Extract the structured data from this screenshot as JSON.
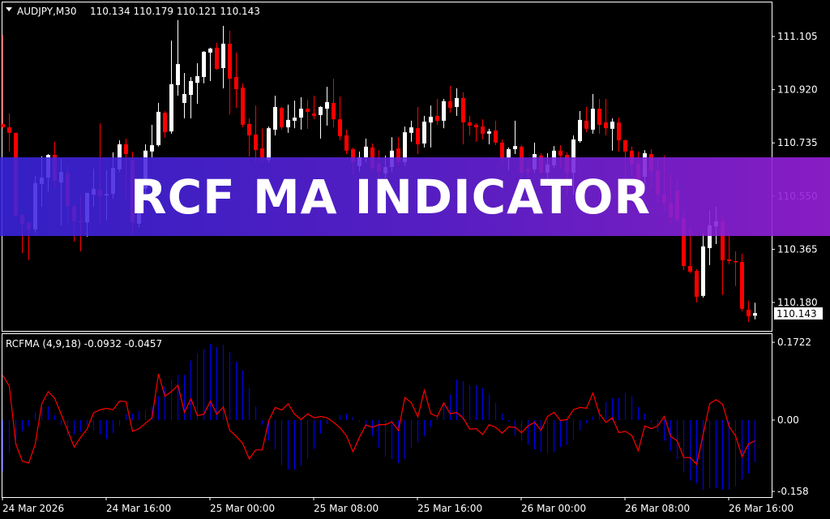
{
  "header": {
    "symbol": "AUDJPY,M30",
    "ohlc": "110.134 110.179 110.121 110.143"
  },
  "indicator_header": "RCFMA (4,9,18) -0.0932 -0.0457",
  "banner": {
    "title": "RCF MA INDICATOR"
  },
  "colors": {
    "background": "#000000",
    "bull": "#ffffff",
    "bear": "#ff0000",
    "histogram": "#0000ff",
    "signal_line": "#ff0000",
    "grid_frame": "#ffffff"
  },
  "chart_data": [
    {
      "type": "candlestick",
      "symbol": "AUDJPY",
      "timeframe": "M30",
      "ylim": [
        110.143,
        111.11
      ],
      "yticks": [
        "111.105",
        "110.920",
        "110.735",
        "110.550",
        "110.365",
        "110.180"
      ],
      "last_price": "110.143",
      "xticks": [
        "24 Mar 2026",
        "24 Mar 16:00",
        "25 Mar 00:00",
        "25 Mar 08:00",
        "25 Mar 16:00",
        "26 Mar 00:00",
        "26 Mar 08:00",
        "26 Mar 16:00"
      ],
      "candles_ohlc": [
        [
          110.801,
          111.111,
          110.786,
          110.789
        ],
        [
          110.789,
          110.837,
          110.705,
          110.77
        ],
        [
          110.77,
          110.77,
          110.476,
          110.482
        ],
        [
          110.485,
          110.485,
          110.352,
          110.454
        ],
        [
          110.457,
          110.46,
          110.327,
          110.434
        ],
        [
          110.434,
          110.62,
          110.423,
          110.595
        ],
        [
          110.592,
          110.688,
          110.513,
          110.614
        ],
        [
          110.614,
          110.696,
          110.566,
          110.693
        ],
        [
          110.693,
          110.739,
          110.578,
          110.603
        ],
        [
          110.597,
          110.679,
          110.448,
          110.634
        ],
        [
          110.631,
          110.654,
          110.448,
          110.516
        ],
        [
          110.513,
          110.524,
          110.392,
          110.462
        ],
        [
          110.465,
          110.555,
          110.358,
          110.459
        ],
        [
          110.459,
          110.561,
          110.409,
          110.561
        ],
        [
          110.555,
          110.645,
          110.513,
          110.575
        ],
        [
          110.572,
          110.803,
          110.457,
          110.55
        ],
        [
          110.552,
          110.64,
          110.465,
          110.558
        ],
        [
          110.558,
          110.702,
          110.541,
          110.648
        ],
        [
          110.643,
          110.744,
          110.634,
          110.73
        ],
        [
          110.73,
          110.75,
          110.541,
          110.696
        ],
        [
          110.674,
          110.705,
          110.417,
          110.459
        ],
        [
          110.454,
          110.513,
          110.442,
          110.49
        ],
        [
          110.575,
          110.73,
          110.555,
          110.708
        ],
        [
          110.705,
          110.798,
          110.682,
          110.727
        ],
        [
          110.727,
          110.874,
          110.722,
          110.843
        ],
        [
          110.84,
          110.846,
          110.753,
          110.772
        ],
        [
          110.775,
          111.091,
          110.767,
          110.939
        ],
        [
          110.936,
          111.162,
          110.899,
          111.009
        ],
        [
          110.874,
          110.978,
          110.82,
          110.905
        ],
        [
          110.902,
          110.964,
          110.82,
          110.95
        ],
        [
          110.944,
          111.012,
          110.871,
          110.967
        ],
        [
          110.964,
          111.054,
          110.942,
          111.052
        ],
        [
          111.049,
          111.066,
          110.95,
          111.063
        ],
        [
          111.066,
          111.083,
          110.989,
          110.992
        ],
        [
          110.995,
          111.142,
          110.925,
          111.08
        ],
        [
          111.08,
          111.125,
          110.834,
          110.958
        ],
        [
          110.964,
          111.049,
          110.857,
          110.922
        ],
        [
          110.927,
          110.942,
          110.789,
          110.798
        ],
        [
          110.801,
          110.82,
          110.688,
          110.761
        ],
        [
          110.764,
          110.865,
          110.668,
          110.71
        ],
        [
          110.716,
          110.786,
          110.668,
          110.685
        ],
        [
          110.676,
          110.792,
          110.668,
          110.786
        ],
        [
          110.781,
          110.899,
          110.761,
          110.86
        ],
        [
          110.857,
          110.86,
          110.781,
          110.789
        ],
        [
          110.789,
          110.868,
          110.77,
          110.815
        ],
        [
          110.812,
          110.882,
          110.786,
          110.823
        ],
        [
          110.823,
          110.894,
          110.781,
          110.854
        ],
        [
          110.854,
          110.885,
          110.784,
          110.843
        ],
        [
          110.837,
          110.899,
          110.817,
          110.829
        ],
        [
          110.832,
          110.863,
          110.75,
          110.86
        ],
        [
          110.854,
          110.93,
          110.795,
          110.877
        ],
        [
          110.874,
          110.958,
          110.789,
          110.817
        ],
        [
          110.817,
          110.896,
          110.744,
          110.758
        ],
        [
          110.761,
          110.781,
          110.696,
          110.708
        ],
        [
          110.713,
          110.719,
          110.626,
          110.668
        ],
        [
          110.654,
          110.705,
          110.634,
          110.685
        ],
        [
          110.685,
          110.75,
          110.668,
          110.722
        ],
        [
          110.719,
          110.733,
          110.634,
          110.648
        ],
        [
          110.662,
          110.71,
          110.612,
          110.634
        ],
        [
          110.629,
          110.691,
          110.612,
          110.651
        ],
        [
          110.651,
          110.755,
          110.634,
          110.708
        ],
        [
          110.716,
          110.755,
          110.654,
          110.668
        ],
        [
          110.668,
          110.792,
          110.654,
          110.772
        ],
        [
          110.77,
          110.812,
          110.739,
          110.789
        ],
        [
          110.786,
          110.86,
          110.696,
          110.73
        ],
        [
          110.733,
          110.829,
          110.719,
          110.809
        ],
        [
          110.806,
          110.865,
          110.719,
          110.826
        ],
        [
          110.829,
          110.888,
          110.798,
          110.812
        ],
        [
          110.812,
          110.888,
          110.786,
          110.88
        ],
        [
          110.88,
          110.933,
          110.84,
          110.857
        ],
        [
          110.86,
          110.925,
          110.829,
          110.891
        ],
        [
          110.891,
          110.911,
          110.73,
          110.806
        ],
        [
          110.806,
          110.829,
          110.761,
          110.795
        ],
        [
          110.798,
          110.803,
          110.739,
          110.789
        ],
        [
          110.792,
          110.817,
          110.747,
          110.767
        ],
        [
          110.767,
          110.784,
          110.73,
          110.775
        ],
        [
          110.778,
          110.812,
          110.727,
          110.736
        ],
        [
          110.736,
          110.747,
          110.668,
          110.682
        ],
        [
          110.682,
          110.719,
          110.64,
          110.713
        ],
        [
          110.713,
          110.812,
          110.696,
          110.724
        ],
        [
          110.722,
          110.727,
          110.606,
          110.631
        ],
        [
          110.645,
          110.671,
          110.583,
          110.634
        ],
        [
          110.643,
          110.736,
          110.631,
          110.696
        ],
        [
          110.691,
          110.699,
          110.626,
          110.631
        ],
        [
          110.631,
          110.699,
          110.612,
          110.66
        ],
        [
          110.657,
          110.724,
          110.648,
          110.708
        ],
        [
          110.708,
          110.727,
          110.648,
          110.691
        ],
        [
          110.693,
          110.702,
          110.555,
          110.631
        ],
        [
          110.631,
          110.761,
          110.555,
          110.747
        ],
        [
          110.741,
          110.846,
          110.736,
          110.815
        ],
        [
          110.812,
          110.86,
          110.772,
          110.784
        ],
        [
          110.781,
          110.905,
          110.767,
          110.854
        ],
        [
          110.854,
          110.888,
          110.767,
          110.798
        ],
        [
          110.806,
          110.888,
          110.761,
          110.786
        ],
        [
          110.784,
          110.82,
          110.708,
          110.809
        ],
        [
          110.806,
          110.823,
          110.705,
          110.744
        ],
        [
          110.744,
          110.747,
          110.606,
          110.705
        ],
        [
          110.708,
          110.722,
          110.62,
          110.66
        ],
        [
          110.662,
          110.705,
          110.527,
          110.558
        ],
        [
          110.617,
          110.71,
          110.583,
          110.699
        ],
        [
          110.696,
          110.713,
          110.583,
          110.637
        ],
        [
          110.64,
          110.682,
          110.527,
          110.555
        ],
        [
          110.555,
          110.691,
          110.499,
          110.527
        ],
        [
          110.527,
          110.626,
          110.457,
          110.476
        ],
        [
          110.569,
          110.606,
          110.462,
          110.468
        ],
        [
          110.473,
          110.499,
          110.293,
          110.307
        ],
        [
          110.307,
          110.44,
          110.282,
          110.287
        ],
        [
          110.29,
          110.296,
          110.18,
          110.2
        ],
        [
          110.203,
          110.42,
          110.197,
          110.375
        ],
        [
          110.369,
          110.499,
          110.31,
          110.448
        ],
        [
          110.445,
          110.513,
          110.383,
          110.462
        ],
        [
          110.462,
          110.488,
          110.206,
          110.327
        ],
        [
          110.33,
          110.423,
          110.313,
          110.324
        ],
        [
          110.324,
          110.358,
          110.237,
          110.321
        ],
        [
          110.321,
          110.349,
          110.149,
          110.158
        ],
        [
          110.155,
          110.186,
          110.112,
          110.132
        ],
        [
          110.134,
          110.179,
          110.121,
          110.143
        ]
      ]
    },
    {
      "type": "bar+line",
      "name": "RCFMA (4,9,18)",
      "ylim": [
        -0.158,
        0.1722
      ],
      "yticks": [
        "0.1722",
        "0.00",
        "-0.158"
      ],
      "histogram": [
        -0.113,
        -0.072,
        -0.044,
        -0.025,
        -0.014,
        0.017,
        0.03,
        0.03,
        0.011,
        -0.011,
        -0.036,
        -0.032,
        -0.026,
        -0.011,
        -0.023,
        -0.032,
        -0.042,
        -0.029,
        -0.013,
        0.014,
        0.014,
        0.02,
        0.022,
        0.03,
        0.053,
        0.074,
        0.089,
        0.1,
        0.1,
        0.132,
        0.148,
        0.158,
        0.169,
        0.162,
        0.167,
        0.151,
        0.129,
        0.11,
        0.071,
        0.03,
        -0.01,
        -0.046,
        -0.065,
        -0.1,
        -0.11,
        -0.11,
        -0.102,
        -0.086,
        -0.064,
        -0.03,
        -0.008,
        0,
        0.011,
        0.014,
        0.007,
        -0.004,
        -0.016,
        -0.035,
        -0.062,
        -0.08,
        -0.086,
        -0.095,
        -0.086,
        -0.062,
        -0.05,
        -0.036,
        -0.016,
        0.007,
        0.038,
        0.056,
        0.089,
        0.086,
        0.077,
        0.077,
        0.071,
        0.056,
        0.038,
        0.014,
        -0.003,
        -0.034,
        -0.046,
        -0.055,
        -0.065,
        -0.071,
        -0.075,
        -0.071,
        -0.06,
        -0.055,
        -0.044,
        -0.023,
        -0.007,
        0.008,
        0.025,
        0.041,
        0.048,
        0.05,
        0.06,
        0.053,
        0.029,
        0.014,
        -0.007,
        -0.026,
        -0.046,
        -0.068,
        -0.087,
        -0.116,
        -0.134,
        -0.14,
        -0.154,
        -0.152,
        -0.151,
        -0.154,
        -0.154,
        -0.147,
        -0.132,
        -0.118,
        -0.0932
      ],
      "line": [
        0.099,
        0.075,
        -0.053,
        -0.091,
        -0.095,
        -0.053,
        0.036,
        0.063,
        0.048,
        0.013,
        -0.023,
        -0.06,
        -0.038,
        -0.02,
        0.016,
        0.023,
        0.026,
        0.023,
        0.042,
        0.041,
        -0.025,
        -0.019,
        -0.007,
        0.005,
        0.102,
        0.053,
        0.063,
        0.077,
        0.017,
        0.047,
        0.01,
        0.013,
        0.042,
        0.013,
        0.029,
        -0.023,
        -0.036,
        -0.052,
        -0.086,
        -0.066,
        -0.066,
        -0.002,
        0.028,
        0.022,
        0.036,
        0.013,
        0.001,
        0.014,
        0.005,
        0.008,
        0.005,
        -0.005,
        -0.017,
        -0.035,
        -0.07,
        -0.038,
        -0.011,
        -0.016,
        -0.01,
        -0.01,
        -0.004,
        -0.023,
        0.05,
        0.038,
        0.007,
        0.066,
        0.014,
        0.008,
        0.038,
        0.014,
        0.017,
        0.004,
        -0.02,
        -0.019,
        -0.032,
        -0.01,
        -0.016,
        -0.029,
        -0.015,
        -0.016,
        -0.028,
        -0.013,
        -0.005,
        -0.023,
        0.008,
        0.017,
        -0.001,
        0.001,
        0.023,
        0.028,
        0.026,
        0.06,
        0.014,
        -0.005,
        0.005,
        -0.028,
        -0.025,
        -0.034,
        -0.068,
        -0.013,
        -0.019,
        -0.013,
        0.008,
        -0.036,
        -0.046,
        -0.083,
        -0.083,
        -0.098,
        -0.032,
        0.036,
        0.045,
        0.035,
        -0.014,
        -0.035,
        -0.081,
        -0.053,
        -0.0457
      ]
    }
  ]
}
